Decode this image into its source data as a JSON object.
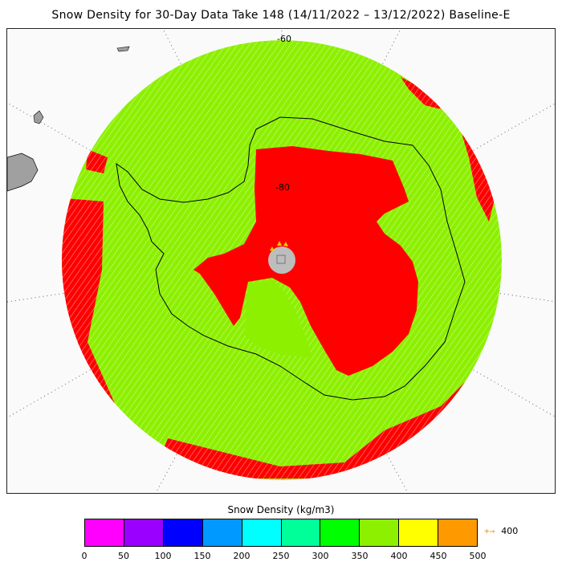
{
  "title": "Snow Density for 30-Day Data Take 148 (14/11/2022 – 13/12/2022) Baseline-E",
  "map": {
    "latitude_labels": [
      "-60",
      "-80"
    ],
    "colors": {
      "ocean_snow": "#8cf000",
      "ice_sheet": "#ff0000",
      "pole_hole": "#bdbdbd",
      "land": "#a0a0a0",
      "background": "#fafafa"
    }
  },
  "colorbar": {
    "title": "Snow Density (kg/m3)",
    "colors": [
      "#ff00ff",
      "#9900ff",
      "#0000ff",
      "#0099ff",
      "#00ffff",
      "#00ff99",
      "#00ff00",
      "#8cf000",
      "#ffff00",
      "#ff9900"
    ],
    "ticks": [
      "0",
      "50",
      "100",
      "150",
      "200",
      "250",
      "300",
      "350",
      "400",
      "450",
      "500"
    ],
    "overflow_label": "400",
    "overflow_arrow": "+→",
    "overflow_color": "#f0921c"
  }
}
